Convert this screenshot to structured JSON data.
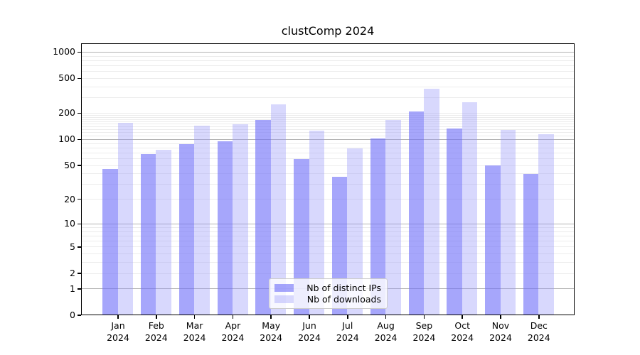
{
  "title": "clustComp 2024",
  "chart_data": {
    "type": "bar",
    "categories": [
      "Jan",
      "Feb",
      "Mar",
      "Apr",
      "May",
      "Jun",
      "Jul",
      "Aug",
      "Sep",
      "Oct",
      "Nov",
      "Dec"
    ],
    "year_label": "2024",
    "series": [
      {
        "name": "Nb of distinct IPs",
        "color": "rgba(112,112,248,0.62)",
        "values": [
          45,
          67,
          86,
          94,
          164,
          58,
          36,
          101,
          204,
          130,
          49,
          39
        ]
      },
      {
        "name": "Nb of downloads",
        "color": "rgba(150,150,250,0.37)",
        "values": [
          152,
          75,
          142,
          148,
          246,
          124,
          77,
          164,
          376,
          262,
          126,
          112
        ]
      }
    ],
    "yticks": [
      0,
      1,
      2,
      5,
      10,
      20,
      50,
      100,
      200,
      500,
      1000
    ],
    "xlabel": "",
    "ylabel": "",
    "scale": "log10(value+1)",
    "ylim": [
      0,
      1258
    ],
    "grid": {
      "enabled": true,
      "major_values": [
        1,
        10,
        100,
        1000
      ],
      "major_color": "#b3b3b3",
      "minor_color": "#ececec"
    },
    "legend_position": "bottom-center"
  }
}
